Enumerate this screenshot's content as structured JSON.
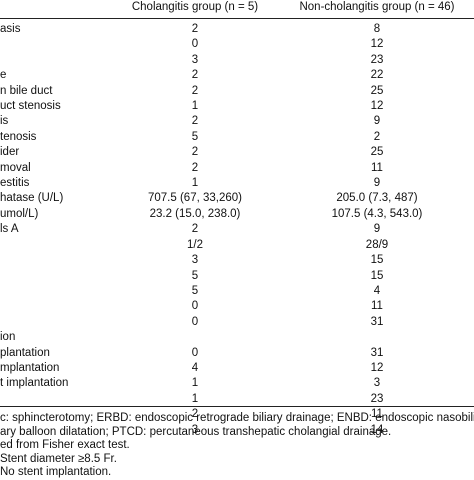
{
  "table": {
    "header": [
      "Cholangitis group (n = 5)",
      "Non-cholangitis group (n = 46)"
    ],
    "rows": [
      {
        "label": "asis",
        "values": [
          2,
          8
        ]
      },
      {
        "values": [
          0,
          12
        ]
      },
      {
        "values": [
          3,
          23
        ]
      },
      {
        "label": "e",
        "values": [
          2,
          22
        ]
      },
      {
        "label": "n bile duct",
        "values": [
          2,
          25
        ]
      },
      {
        "label": "uct stenosis",
        "values": [
          1,
          12
        ]
      },
      {
        "label": "is",
        "values": [
          2,
          9
        ]
      },
      {
        "label": "tenosis",
        "values": [
          5,
          2
        ]
      },
      {
        "label": "ider",
        "values": [
          2,
          25
        ]
      },
      {
        "label": "moval",
        "values": [
          2,
          11
        ]
      },
      {
        "label": "estitis",
        "values": [
          1,
          9
        ]
      },
      {
        "label": "hatase (U/L)",
        "values": [
          "707.5 (67, 33,260)",
          "205.0 (7.3, 487)"
        ]
      },
      {
        "label": "umol/L)",
        "values": [
          "23.2 (15.0, 238.0)",
          "107.5 (4.3, 543.0)"
        ]
      },
      {
        "label": "ls A",
        "values": [
          2,
          9
        ]
      },
      {
        "values": [
          "1/2",
          "28/9"
        ]
      },
      {
        "values": [
          3,
          15
        ]
      },
      {
        "values": [
          5,
          15
        ]
      },
      {
        "values": [
          5,
          4
        ]
      },
      {
        "values": [
          0,
          11
        ]
      },
      {
        "values": [
          0,
          31
        ]
      },
      {
        "label": "ion"
      },
      {
        "label": "plantation",
        "values": [
          0,
          31
        ]
      },
      {
        "label": "mplantation",
        "values": [
          4,
          12
        ]
      },
      {
        "label": "t implantation",
        "values": [
          1,
          3
        ]
      },
      {
        "values": [
          1,
          23
        ]
      },
      {
        "values": [
          2,
          11
        ]
      },
      {
        "values": [
          3,
          14
        ]
      }
    ]
  },
  "footnotes": [
    "c: sphincterotomy; ERBD: endoscopic retrograde biliary drainage; ENBD: endoscopic nasobiliary",
    "ary balloon dilatation; PTCD: percutaneous transhepatic cholangial drainage.",
    "ed from Fisher exact test.",
    "Stent diameter ≥8.5 Fr.",
    "No stent implantation."
  ]
}
